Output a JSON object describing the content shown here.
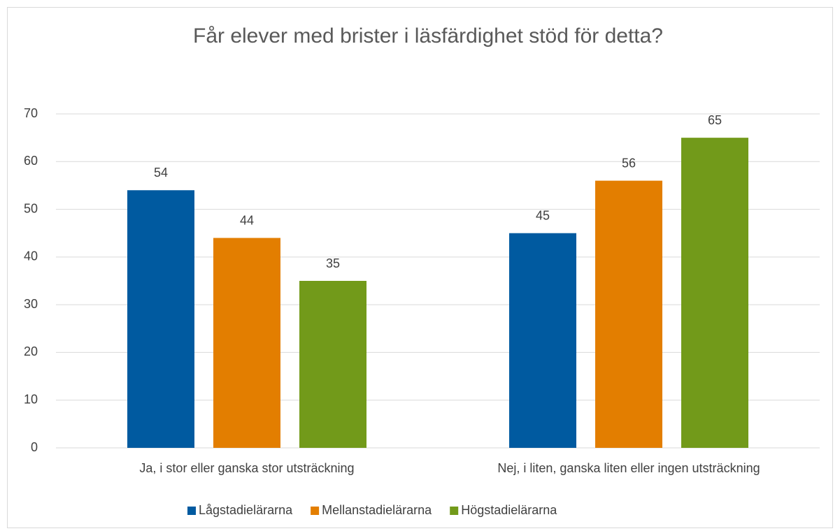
{
  "chart_data": {
    "type": "bar",
    "title": "Får elever med brister i läsfärdighet stöd för detta?",
    "categories": [
      "Ja, i stor eller ganska stor utsträckning",
      "Nej, i liten, ganska liten eller ingen utsträckning"
    ],
    "series": [
      {
        "name": "Lågstadielärarna",
        "color": "#005aa0",
        "values": [
          54,
          45
        ]
      },
      {
        "name": "Mellanstadielärarna",
        "color": "#e37e00",
        "values": [
          44,
          56
        ]
      },
      {
        "name": "Högstadielärarna",
        "color": "#729a1a",
        "values": [
          35,
          65
        ]
      }
    ],
    "ylim": [
      0,
      70
    ],
    "yticks": [
      0,
      10,
      20,
      30,
      40,
      50,
      60,
      70
    ],
    "grid": true,
    "legend": "bottom"
  }
}
